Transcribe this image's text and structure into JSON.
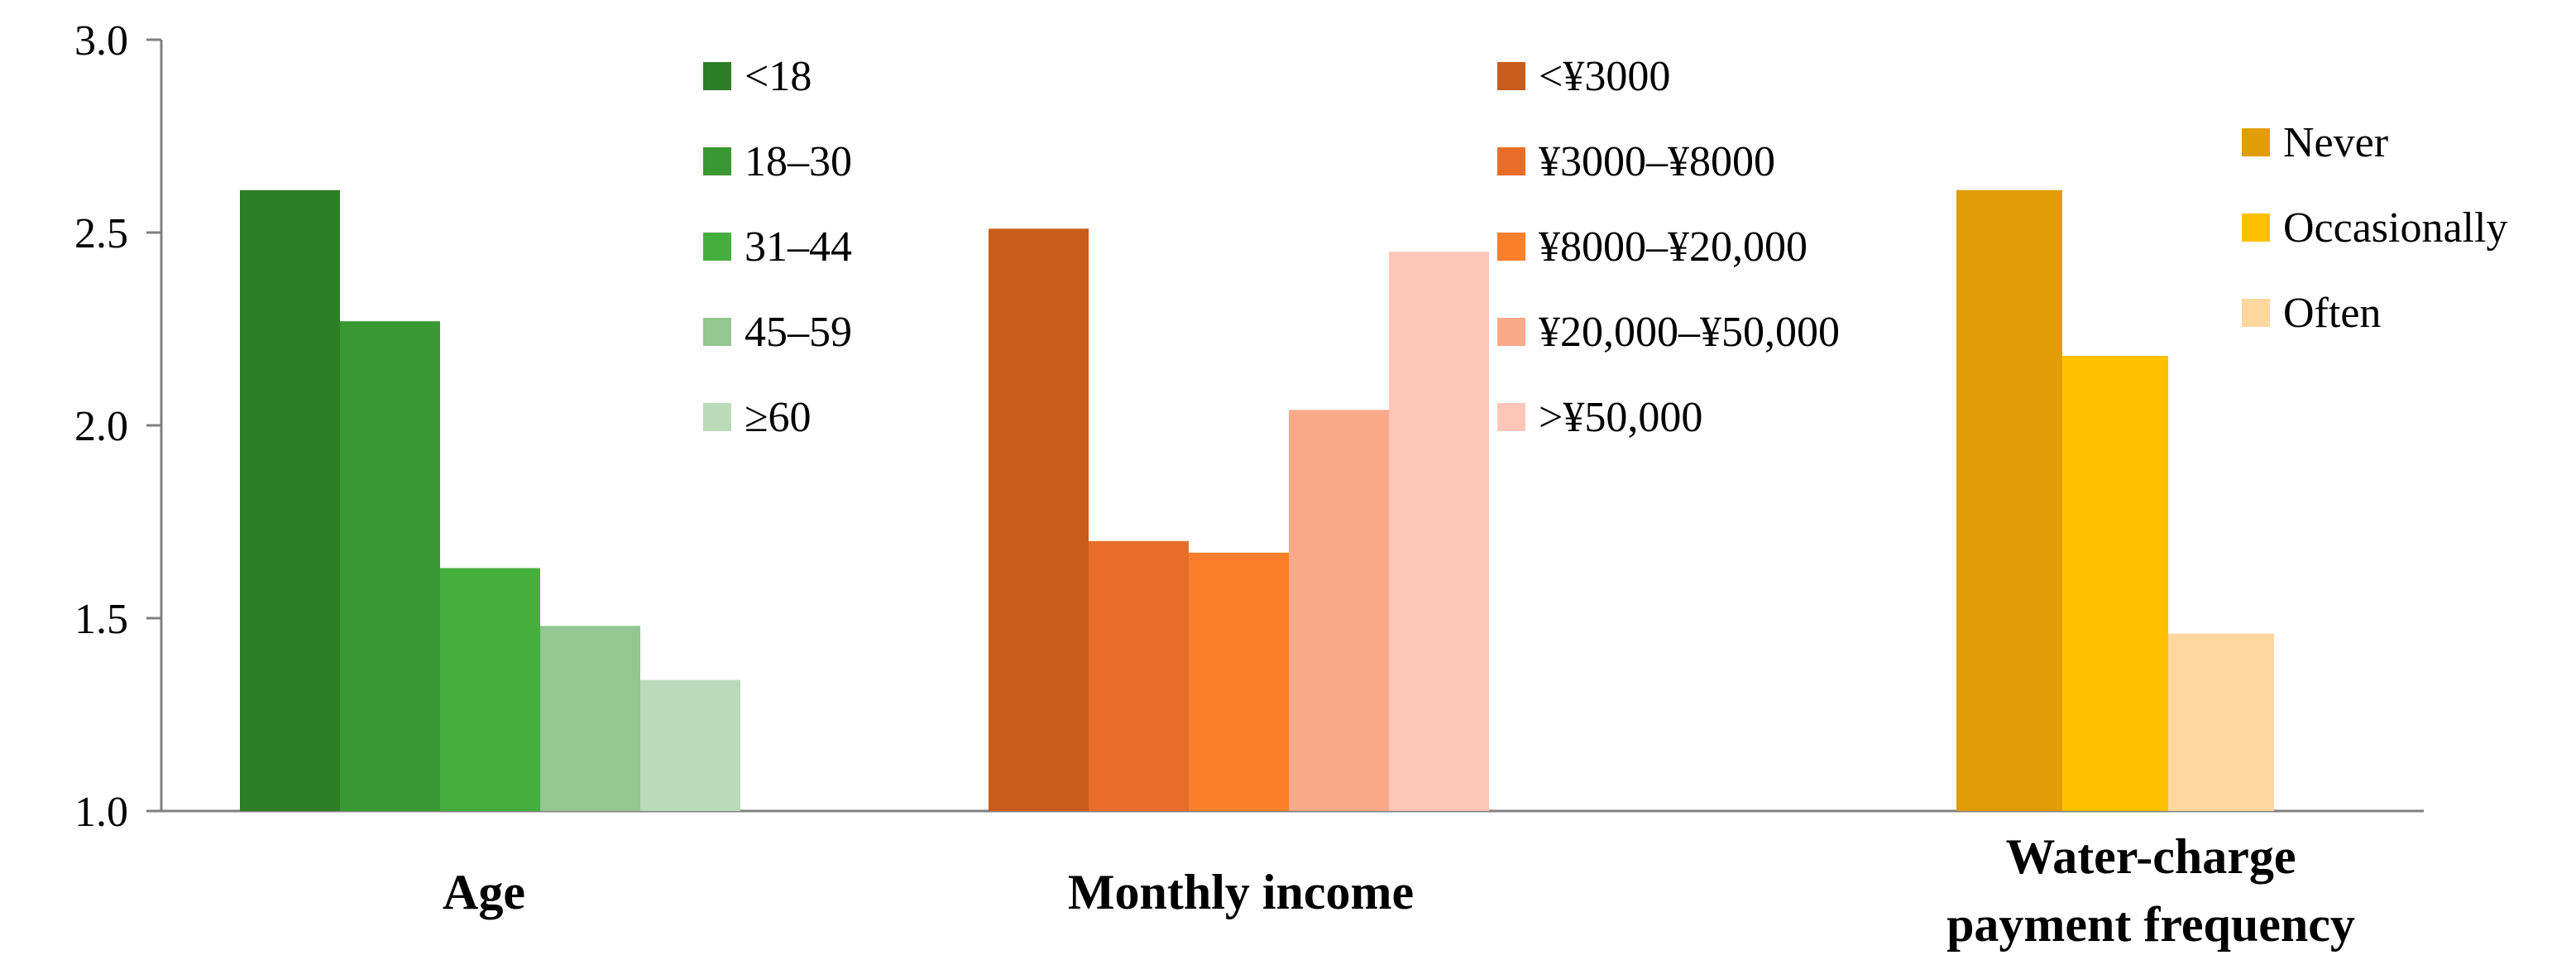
{
  "chart_data": {
    "type": "bar",
    "ylim": [
      1.0,
      3.0
    ],
    "yticks": [
      "1.0",
      "1.5",
      "2.0",
      "2.5",
      "3.0"
    ],
    "grid": false,
    "groups": [
      {
        "label": "Age",
        "label_lines": [
          "Age"
        ],
        "series": [
          {
            "name": "<18",
            "value": 2.61,
            "color": "#2E7D27"
          },
          {
            "name": "18–30",
            "value": 2.27,
            "color": "#3A9833"
          },
          {
            "name": "31–44",
            "value": 1.63,
            "color": "#45AF3E"
          },
          {
            "name": "45–59",
            "value": 1.48,
            "color": "#93C690"
          },
          {
            "name": "≥60",
            "value": 1.34,
            "color": "#BADBB8"
          }
        ]
      },
      {
        "label": "Monthly income",
        "label_lines": [
          "Monthly income"
        ],
        "series": [
          {
            "name": "<¥3000",
            "value": 2.51,
            "color": "#C95C1A"
          },
          {
            "name": "¥3000–¥8000",
            "value": 1.7,
            "color": "#E86E27"
          },
          {
            "name": "¥8000–¥20,000",
            "value": 1.67,
            "color": "#FC7F2B"
          },
          {
            "name": "¥20,000–¥50,000",
            "value": 2.04,
            "color": "#FCA98A"
          },
          {
            "name": ">¥50,000",
            "value": 2.45,
            "color": "#FFC6B8"
          }
        ]
      },
      {
        "label": "Water-charge payment frequency",
        "label_lines": [
          "Water-charge",
          "payment frequency"
        ],
        "series": [
          {
            "name": "Never",
            "value": 2.61,
            "color": "#E29C05"
          },
          {
            "name": "Occasionally",
            "value": 2.18,
            "color": "#FEC000"
          },
          {
            "name": "Often",
            "value": 1.46,
            "color": "#FDD79E"
          }
        ]
      }
    ]
  }
}
